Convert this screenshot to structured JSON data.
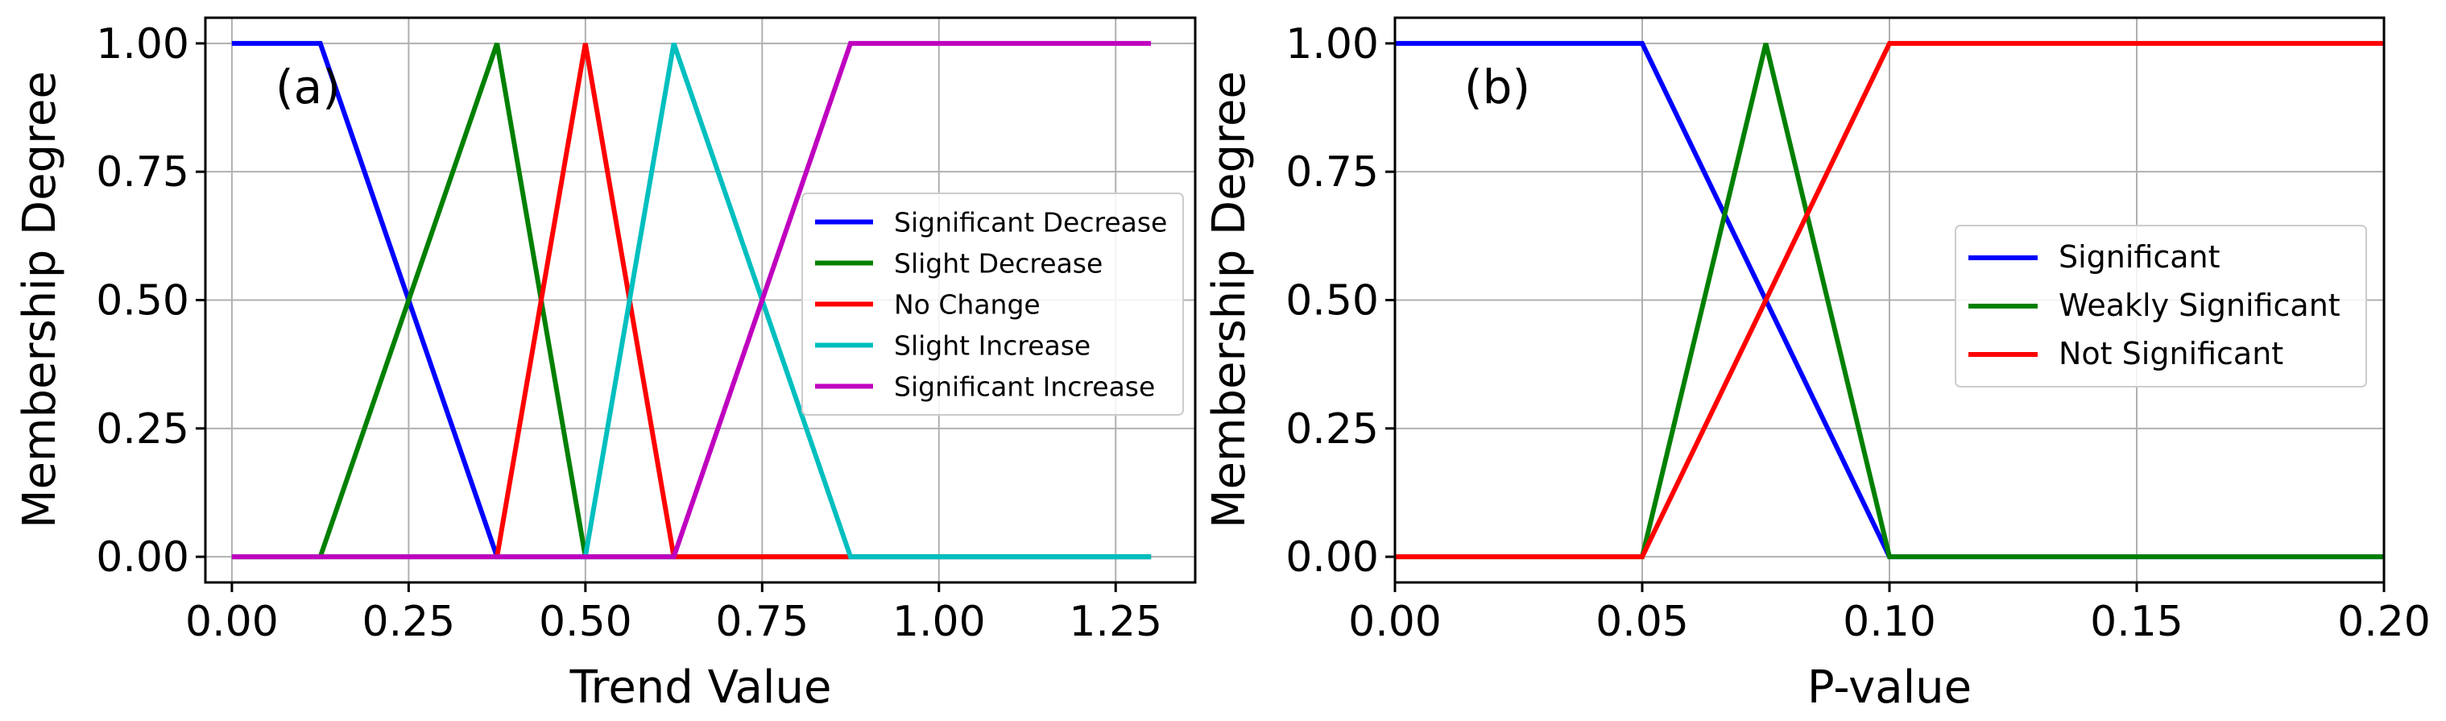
{
  "chart_data": [
    {
      "type": "line",
      "panel_label": "(a)",
      "xlabel": "Trend Value",
      "ylabel": "Membership Degree",
      "xlim": [
        -0.0375,
        1.3625
      ],
      "ylim": [
        -0.05,
        1.05
      ],
      "xticks": [
        0.0,
        0.25,
        0.5,
        0.75,
        1.0,
        1.25
      ],
      "xtick_labels": [
        "0.00",
        "0.25",
        "0.50",
        "0.75",
        "1.00",
        "1.25"
      ],
      "yticks": [
        0.0,
        0.25,
        0.5,
        0.75,
        1.0
      ],
      "ytick_labels": [
        "0.00",
        "0.25",
        "0.50",
        "0.75",
        "1.00"
      ],
      "grid": true,
      "legend_position": "center-right",
      "series": [
        {
          "name": "Significant Decrease",
          "color": "#0000ff",
          "x": [
            0,
            0.125,
            0.375,
            1.3
          ],
          "y": [
            1,
            1,
            0,
            0
          ]
        },
        {
          "name": "Slight Decrease",
          "color": "#008000",
          "x": [
            0,
            0.125,
            0.375,
            0.5,
            1.3
          ],
          "y": [
            0,
            0,
            1,
            0,
            0
          ]
        },
        {
          "name": "No Change",
          "color": "#ff0000",
          "x": [
            0,
            0.375,
            0.5,
            0.625,
            0.875
          ],
          "y": [
            0,
            0,
            1,
            0,
            0
          ]
        },
        {
          "name": "Slight Increase",
          "color": "#00bfbf",
          "x": [
            0,
            0.5,
            0.625,
            0.875,
            1.3
          ],
          "y": [
            0,
            0,
            1,
            0,
            0
          ]
        },
        {
          "name": "Significant Increase",
          "color": "#bf00bf",
          "x": [
            0,
            0.625,
            0.875,
            1.3
          ],
          "y": [
            0,
            0,
            1,
            1
          ]
        }
      ]
    },
    {
      "type": "line",
      "panel_label": "(b)",
      "xlabel": "P-value",
      "ylabel": "Membership Degree",
      "xlim": [
        0.0,
        0.2
      ],
      "ylim": [
        -0.05,
        1.05
      ],
      "xticks": [
        0.0,
        0.05,
        0.1,
        0.15,
        0.2
      ],
      "xtick_labels": [
        "0.00",
        "0.05",
        "0.10",
        "0.15",
        "0.20"
      ],
      "yticks": [
        0.0,
        0.25,
        0.5,
        0.75,
        1.0
      ],
      "ytick_labels": [
        "0.00",
        "0.25",
        "0.50",
        "0.75",
        "1.00"
      ],
      "grid": true,
      "legend_position": "center-right",
      "series": [
        {
          "name": "Significant",
          "color": "#0000ff",
          "x": [
            0,
            0.05,
            0.1,
            0.2
          ],
          "y": [
            1,
            1,
            0,
            0
          ]
        },
        {
          "name": "Weakly Significant",
          "color": "#008000",
          "x": [
            0,
            0.05,
            0.075,
            0.1,
            0.2
          ],
          "y": [
            0,
            0,
            1,
            0,
            0
          ]
        },
        {
          "name": "Not Significant",
          "color": "#ff0000",
          "x": [
            0,
            0.05,
            0.1,
            0.2
          ],
          "y": [
            0,
            0,
            1,
            1
          ]
        }
      ]
    }
  ]
}
